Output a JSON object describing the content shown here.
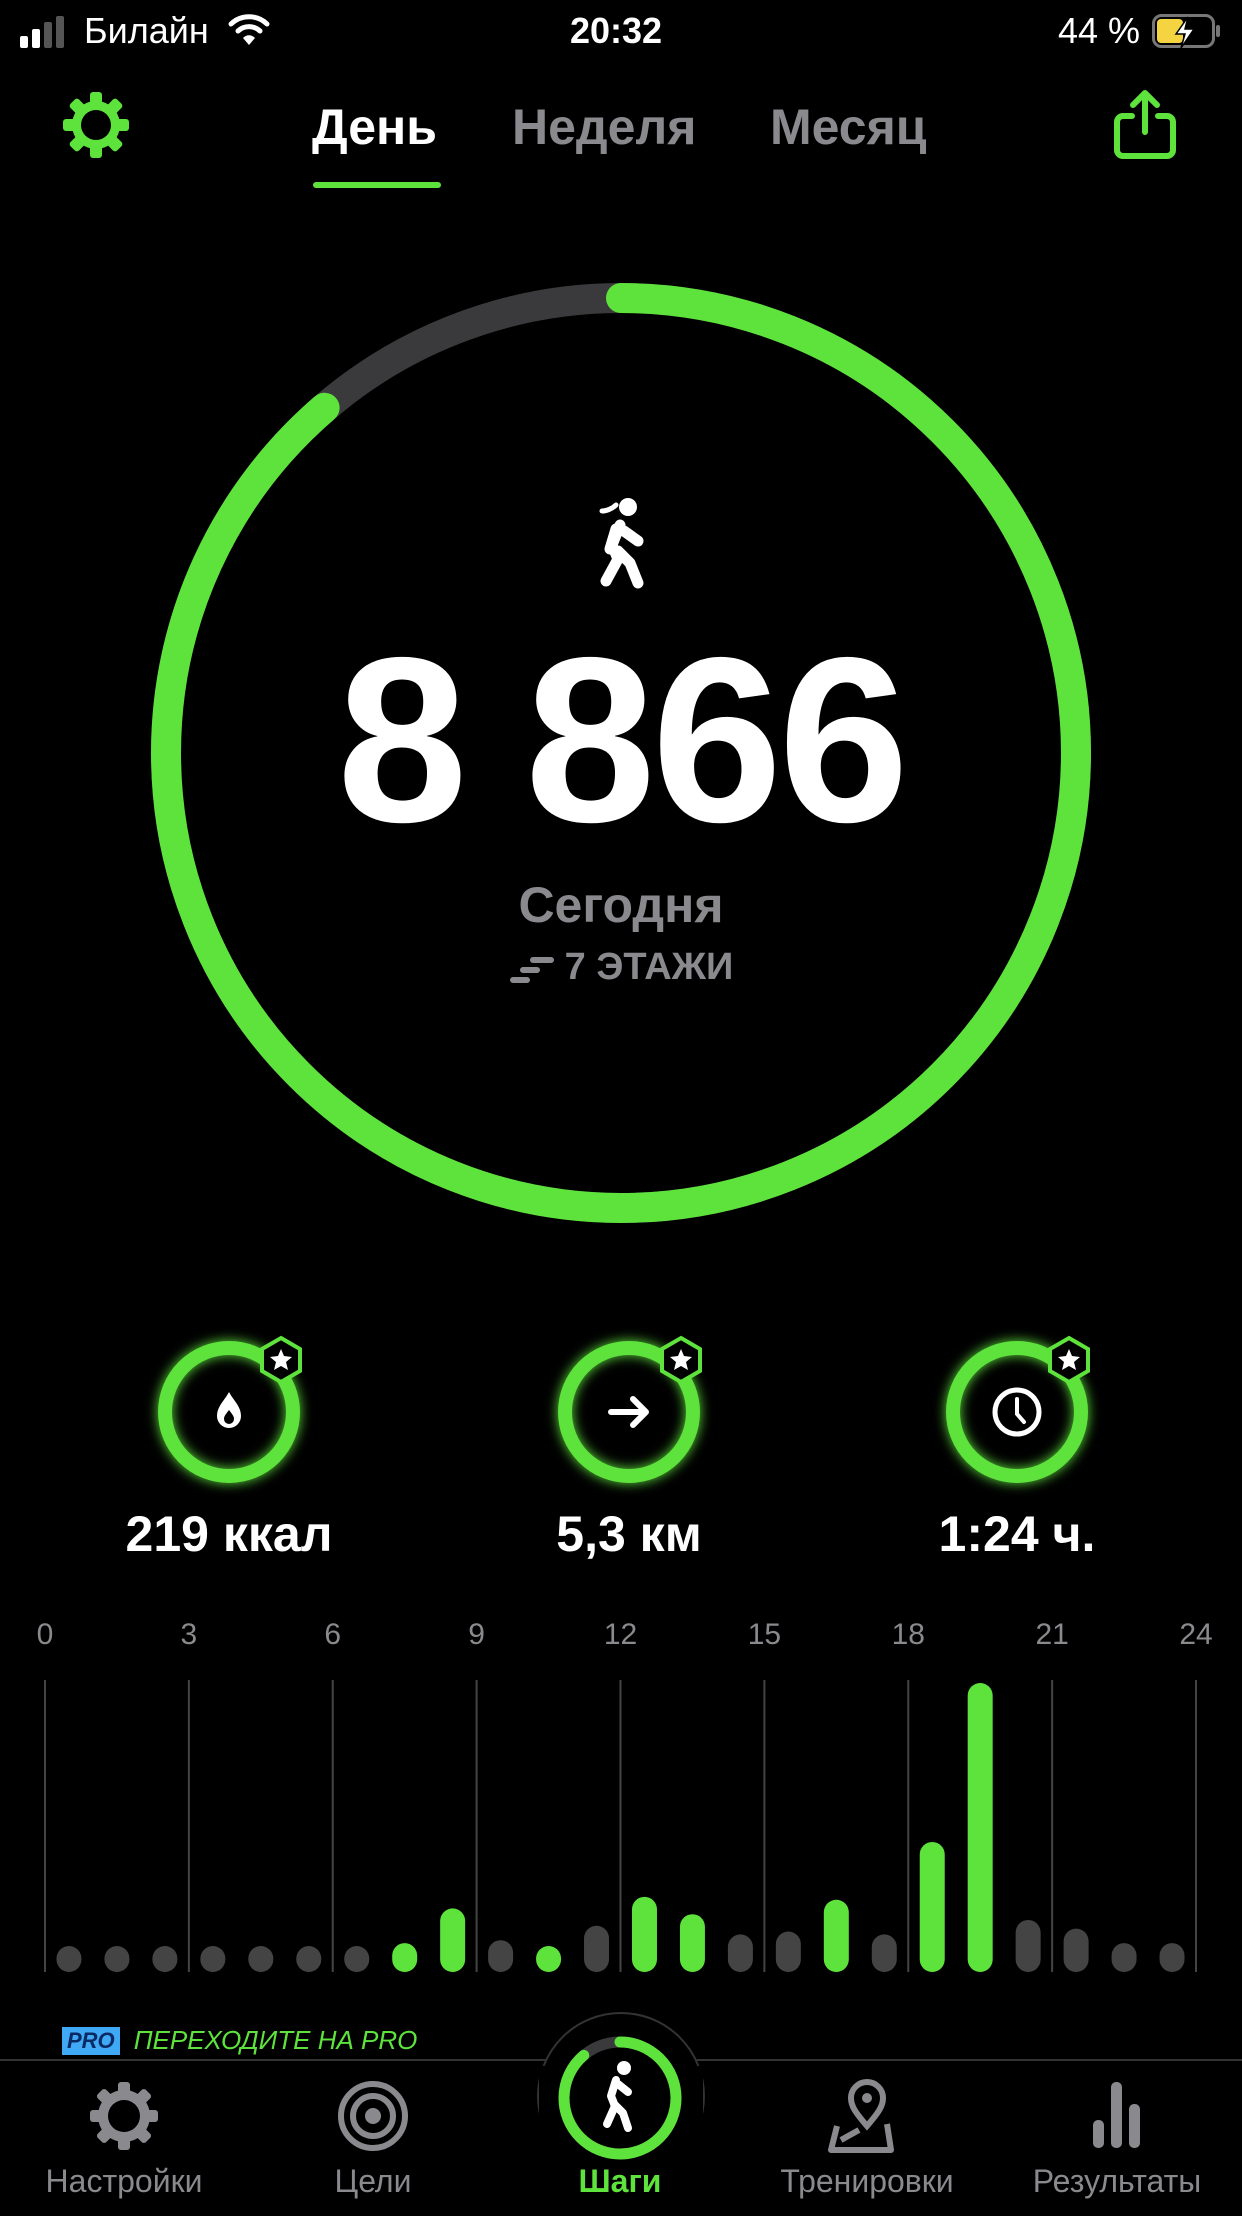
{
  "status_bar": {
    "carrier": "Билайн",
    "time": "20:32",
    "battery": "44 %"
  },
  "header": {
    "settings_icon": "gear-icon",
    "share_icon": "share-icon",
    "tabs": [
      {
        "label": "День",
        "active": true
      },
      {
        "label": "Неделя",
        "active": false
      },
      {
        "label": "Месяц",
        "active": false
      }
    ]
  },
  "ring": {
    "steps": "8 866",
    "progress": 0.887,
    "label": "Сегодня",
    "floors": "7 ЭТАЖИ",
    "icon": "walking-icon"
  },
  "stats": [
    {
      "icon": "flame-icon",
      "value": "219 ккал"
    },
    {
      "icon": "arrow-right-icon",
      "value": "5,3 км"
    },
    {
      "icon": "clock-icon",
      "value": "1:24 ч."
    }
  ],
  "chart_data": {
    "type": "bar",
    "x_ticks": [
      "0",
      "3",
      "6",
      "9",
      "12",
      "15",
      "18",
      "21",
      "24"
    ],
    "xlim": [
      0,
      24
    ],
    "grid": true,
    "categories": [
      "0",
      "1",
      "2",
      "3",
      "4",
      "5",
      "6",
      "7",
      "8",
      "9",
      "10",
      "11",
      "12",
      "13",
      "14",
      "15",
      "16",
      "17",
      "18",
      "19",
      "20",
      "21",
      "22",
      "23"
    ],
    "relative_values": [
      9,
      9,
      9,
      9,
      9,
      9,
      9,
      10,
      22,
      11,
      9,
      16,
      26,
      20,
      13,
      14,
      25,
      13,
      45,
      100,
      18,
      15,
      10,
      10
    ],
    "goal_met": [
      false,
      false,
      false,
      false,
      false,
      false,
      false,
      true,
      true,
      false,
      true,
      false,
      true,
      true,
      false,
      false,
      true,
      false,
      true,
      true,
      false,
      false,
      false,
      false
    ]
  },
  "colors": {
    "accent": "#5ee23c",
    "inactive_bar": "#444444",
    "muted_text": "#8a8a8e",
    "pro_badge": "#3fa9f5"
  },
  "promo": {
    "badge": "PRO",
    "text": "ПЕРЕХОДИТЕ НА PRO"
  },
  "bottom_nav": [
    {
      "label": "Настройки",
      "icon": "gear-icon",
      "active": false
    },
    {
      "label": "Цели",
      "icon": "target-icon",
      "active": false
    },
    {
      "label": "Шаги",
      "icon": "walking-icon",
      "active": true
    },
    {
      "label": "Тренировки",
      "icon": "map-pin-icon",
      "active": false
    },
    {
      "label": "Результаты",
      "icon": "bar-chart-icon",
      "active": false
    }
  ]
}
